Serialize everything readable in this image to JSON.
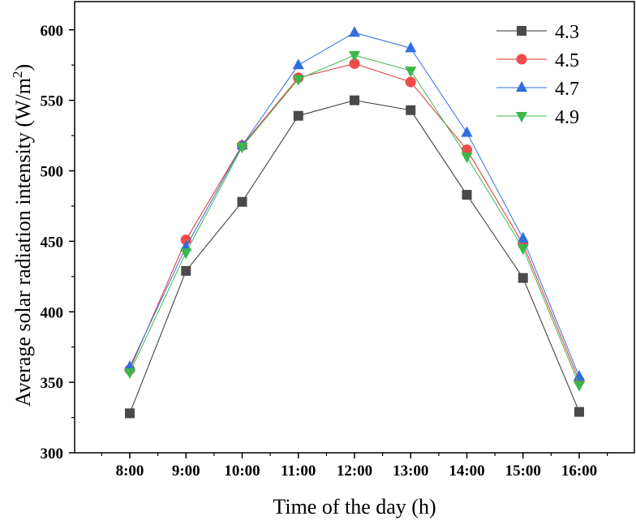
{
  "chart_data": {
    "type": "line",
    "title": "",
    "xlabel": "Time of the day (h)",
    "ylabel_main": "Average solar radiation intensity (W/m",
    "ylabel_sup": "2",
    "ylabel_close": ")",
    "ylabel": "Average solar radiation intensity (W/m2)",
    "categories": [
      "8:00",
      "9:00",
      "10:00",
      "11:00",
      "12:00",
      "13:00",
      "14:00",
      "15:00",
      "16:00"
    ],
    "ylim": [
      300,
      620
    ],
    "yticks": [
      300,
      350,
      400,
      450,
      500,
      550,
      600
    ],
    "grid": false,
    "legend_position": "top-right",
    "series": [
      {
        "name": "4.3",
        "marker": "square",
        "color": "#4a4a4a",
        "line_color": "#333333",
        "values": [
          328,
          429,
          478,
          539,
          550,
          543,
          483,
          424,
          329
        ]
      },
      {
        "name": "4.5",
        "marker": "circle",
        "color": "#f04a4a",
        "line_color": "#e03030",
        "values": [
          359,
          451,
          518,
          566,
          576,
          563,
          515,
          448,
          351
        ]
      },
      {
        "name": "4.7",
        "marker": "triangle-up",
        "color": "#2f6fe0",
        "line_color": "#2f6fe0",
        "values": [
          361,
          446,
          518,
          575,
          598,
          587,
          527,
          452,
          354
        ]
      },
      {
        "name": "4.9",
        "marker": "triangle-down",
        "color": "#3cb84a",
        "line_color": "#3cb84a",
        "values": [
          357,
          442,
          517,
          565,
          582,
          571,
          510,
          445,
          348
        ]
      }
    ]
  }
}
